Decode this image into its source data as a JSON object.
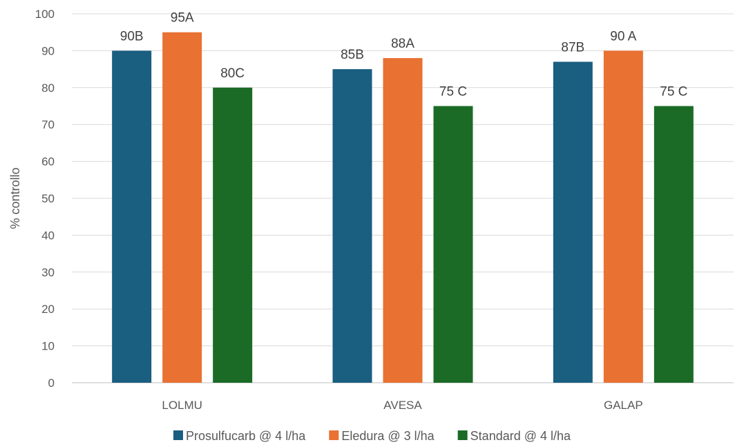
{
  "chart_data": {
    "type": "bar",
    "title": "",
    "xlabel": "",
    "ylabel": "% controllo",
    "ylim": [
      0,
      100
    ],
    "yticks": [
      0,
      10,
      20,
      30,
      40,
      50,
      60,
      70,
      80,
      90,
      100
    ],
    "grid": true,
    "legend_position": "bottom",
    "categories": [
      "LOLMU",
      "AVESA",
      "GALAP"
    ],
    "series": [
      {
        "name": "Prosulfucarb @ 4 l/ha",
        "color": "#1a5e80",
        "values": [
          90,
          85,
          87
        ],
        "labels": [
          "90B",
          "85B",
          "87B"
        ]
      },
      {
        "name": "Eledura @ 3 l/ha",
        "color": "#e97132",
        "values": [
          95,
          88,
          90
        ],
        "labels": [
          "95A",
          "88A",
          "90 A"
        ]
      },
      {
        "name": "Standard @ 4 l/ha",
        "color": "#1b6b26",
        "values": [
          80,
          75,
          75
        ],
        "labels": [
          "80C",
          "75 C",
          "75 C"
        ]
      }
    ]
  }
}
